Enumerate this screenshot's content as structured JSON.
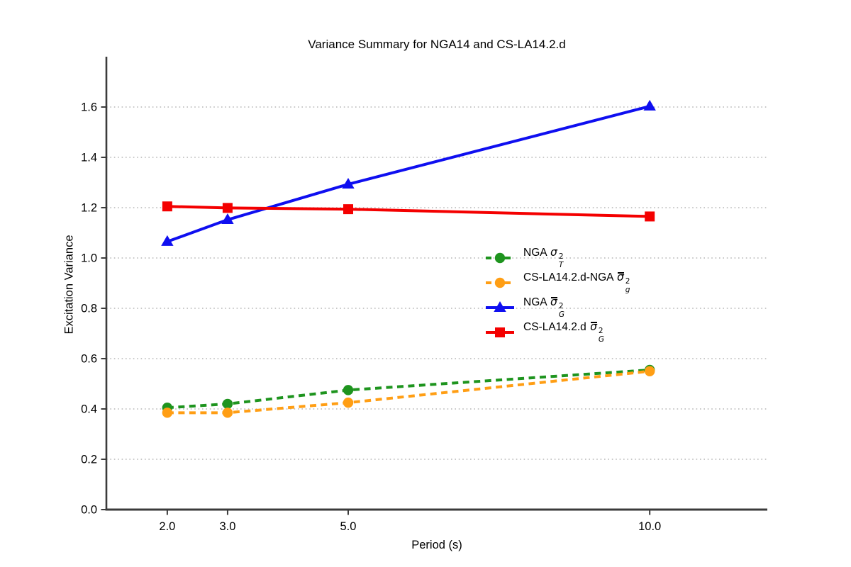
{
  "chart_data": {
    "type": "line",
    "title": "Variance Summary for NGA14 and CS-LA14.2.d",
    "xlabel": "Period (s)",
    "ylabel": "Excitation Variance",
    "x": [
      2.0,
      3.0,
      5.0,
      10.0
    ],
    "xlim": [
      0.99,
      11.95
    ],
    "ylim": [
      0.0,
      1.8
    ],
    "xticks": [
      2.0,
      3.0,
      5.0,
      10.0
    ],
    "xtick_labels": [
      "2.0",
      "3.0",
      "5.0",
      "10.0"
    ],
    "yticks": [
      0.0,
      0.2,
      0.4,
      0.6,
      0.8,
      1.0,
      1.2,
      1.4,
      1.6
    ],
    "ytick_labels": [
      "0.0",
      "0.2",
      "0.4",
      "0.6",
      "0.8",
      "1.0",
      "1.2",
      "1.4",
      "1.6"
    ],
    "grid": {
      "horizontal": true,
      "style": "dotted",
      "color": "#a8a8a8"
    },
    "axis_color": "#3b3b3b",
    "legend": {
      "position": "center-right",
      "frame": false
    },
    "series": [
      {
        "id": "nga-sigma-T2",
        "label_prefix": "NGA ",
        "sigma": "σ",
        "sigma_bar": false,
        "sup": "2",
        "sub": "T",
        "color": "#1E941E",
        "line_style": "dashed",
        "marker": "circle",
        "values": [
          0.405,
          0.42,
          0.475,
          0.555
        ]
      },
      {
        "id": "cs-la14-2-d-nga-sigma-g2",
        "label_prefix": "CS-LA14.2.d-NGA ",
        "sigma": "σ",
        "sigma_bar": true,
        "sup": "2",
        "sub": "g",
        "color": "#FF9E14",
        "line_style": "dashed",
        "marker": "circle",
        "values": [
          0.385,
          0.385,
          0.425,
          0.55
        ]
      },
      {
        "id": "nga-sigma-G2",
        "label_prefix": "NGA ",
        "sigma": "σ",
        "sigma_bar": true,
        "sup": "2",
        "sub": "G",
        "color": "#0F0FF0",
        "line_style": "solid",
        "marker": "triangle",
        "values": [
          1.065,
          1.152,
          1.293,
          1.603
        ]
      },
      {
        "id": "cs-la14-2-d-sigma-G2",
        "label_prefix": "CS-LA14.2.d ",
        "sigma": "σ",
        "sigma_bar": true,
        "sup": "2",
        "sub": "G",
        "color": "#F40000",
        "line_style": "solid",
        "marker": "square",
        "values": [
          1.205,
          1.199,
          1.194,
          1.165
        ]
      }
    ]
  }
}
